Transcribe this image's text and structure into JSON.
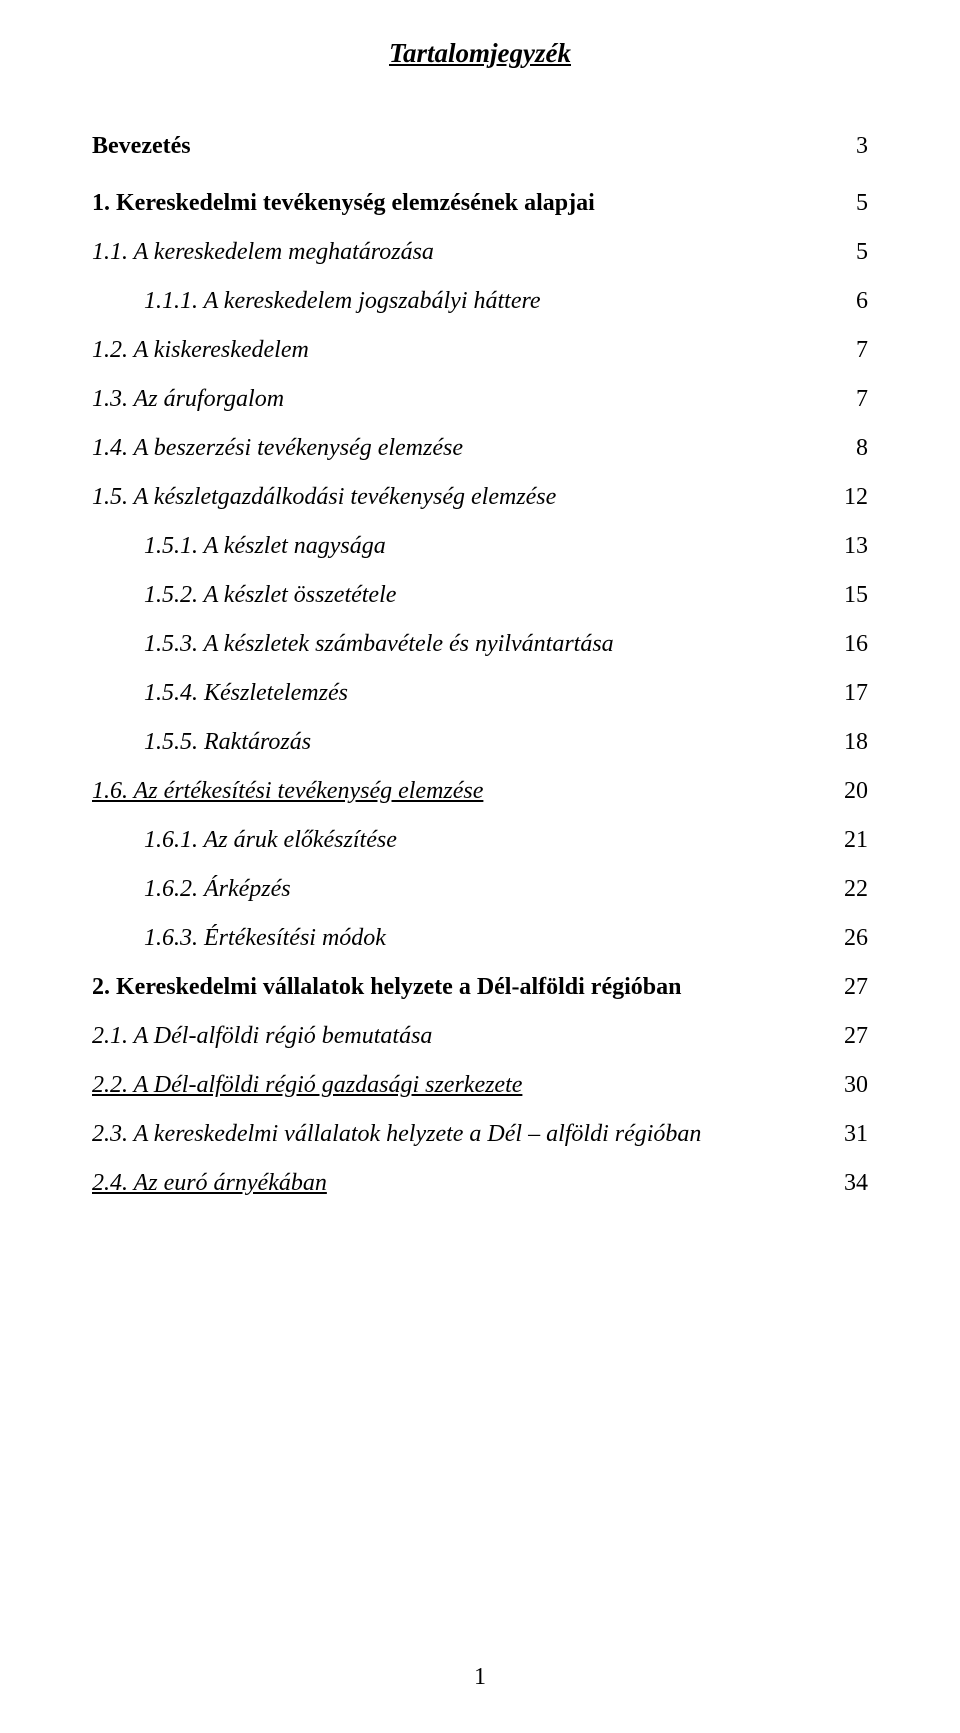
{
  "title": "Tartalomjegyzék",
  "footer_page": "1",
  "entries": [
    {
      "level": 0,
      "text": "Bevezetés",
      "page": "3",
      "bold": true,
      "italic": false,
      "underline": false,
      "extraClass": "gap-intro"
    },
    {
      "level": 0,
      "text": "1.  Kereskedelmi tevékenység elemzésének alapjai",
      "page": "5",
      "bold": true,
      "italic": false,
      "underline": false
    },
    {
      "level": 1,
      "text": "1.1.  A kereskedelem meghatározása",
      "page": "5",
      "bold": false,
      "italic": true,
      "underline": false
    },
    {
      "level": 2,
      "text": "1.1.1.  A kereskedelem jogszabályi háttere",
      "page": "6",
      "bold": false,
      "italic": true,
      "underline": false
    },
    {
      "level": 1,
      "text": "1.2.  A kiskereskedelem",
      "page": "7",
      "bold": false,
      "italic": true,
      "underline": false
    },
    {
      "level": 1,
      "text": "1.3.  Az áruforgalom",
      "page": "7",
      "bold": false,
      "italic": true,
      "underline": false
    },
    {
      "level": 1,
      "text": "1.4.  A beszerzési tevékenység elemzése",
      "page": "8",
      "bold": false,
      "italic": true,
      "underline": false
    },
    {
      "level": 1,
      "text": "1.5.  A készletgazdálkodási tevékenység elemzése",
      "page": "12",
      "bold": false,
      "italic": true,
      "underline": false
    },
    {
      "level": 2,
      "text": "1.5.1.  A készlet nagysága",
      "page": "13",
      "bold": false,
      "italic": true,
      "underline": false
    },
    {
      "level": 2,
      "text": "1.5.2.  A készlet összetétele",
      "page": "15",
      "bold": false,
      "italic": true,
      "underline": false
    },
    {
      "level": 2,
      "text": "1.5.3.  A készletek számbavétele és nyilvántartása",
      "page": "16",
      "bold": false,
      "italic": true,
      "underline": false
    },
    {
      "level": 2,
      "text": "1.5.4.  Készletelemzés",
      "page": "17",
      "bold": false,
      "italic": true,
      "underline": false
    },
    {
      "level": 2,
      "text": "1.5.5.  Raktározás",
      "page": "18",
      "bold": false,
      "italic": true,
      "underline": false
    },
    {
      "level": 1,
      "text": "1.6.  Az értékesítési tevékenység elemzése",
      "page": "20",
      "bold": false,
      "italic": true,
      "underline": true
    },
    {
      "level": 2,
      "text": "1.6.1.  Az áruk előkészítése",
      "page": "21",
      "bold": false,
      "italic": true,
      "underline": false
    },
    {
      "level": 2,
      "text": "1.6.2.  Árképzés",
      "page": "22",
      "bold": false,
      "italic": true,
      "underline": false
    },
    {
      "level": 2,
      "text": "1.6.3.  Értékesítési módok",
      "page": "26",
      "bold": false,
      "italic": true,
      "underline": false
    },
    {
      "level": 0,
      "text": "2.  Kereskedelmi vállalatok helyzete a Dél-alföldi régióban",
      "page": "27",
      "bold": true,
      "italic": false,
      "underline": false
    },
    {
      "level": 1,
      "text": "2.1.  A Dél-alföldi régió bemutatása",
      "page": "27",
      "bold": false,
      "italic": true,
      "underline": false
    },
    {
      "level": 1,
      "text": "2.2.  A Dél-alföldi régió gazdasági szerkezete",
      "page": "30",
      "bold": false,
      "italic": true,
      "underline": true
    },
    {
      "level": 1,
      "text": "2.3.  A kereskedelmi vállalatok helyzete a Dél – alföldi régióban",
      "page": "31",
      "bold": false,
      "italic": true,
      "underline": false
    },
    {
      "level": 1,
      "text": "2.4.  Az euró árnyékában",
      "page": "34",
      "bold": false,
      "italic": true,
      "underline": true
    }
  ]
}
